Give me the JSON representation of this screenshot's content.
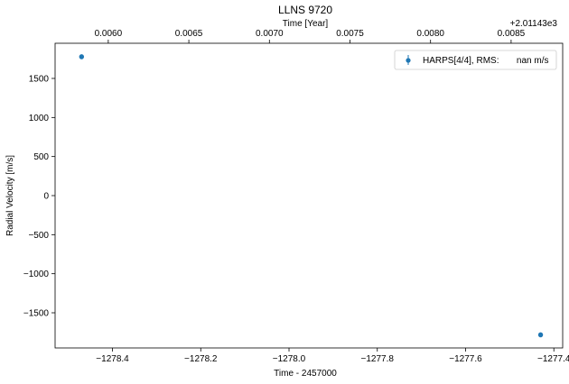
{
  "chart_data": {
    "type": "scatter",
    "title": "LLNS  9720",
    "xlabel": "Time - 2457000",
    "ylabel": "Radial Velocity [m/s]",
    "top_xlabel": "Time [Year]",
    "top_offset_label": "+2.01143e3",
    "xlim": [
      -1278.53,
      -1277.38
    ],
    "ylim": [
      -1950,
      1950
    ],
    "xticks": [
      -1278.4,
      -1278.2,
      -1278.0,
      -1277.8,
      -1277.6,
      -1277.4
    ],
    "xtick_labels": [
      "−1278.4",
      "−1278.2",
      "−1278.0",
      "−1277.8",
      "−1277.6",
      "−1277.4"
    ],
    "yticks": [
      1500,
      1000,
      500,
      0,
      -500,
      -1000,
      -1500
    ],
    "ytick_labels": [
      "1500",
      "1000",
      "500",
      "0",
      "−500",
      "−1000",
      "−1500"
    ],
    "top_xticks": [
      0.006,
      0.0065,
      0.007,
      0.0075,
      0.008,
      0.0085
    ],
    "top_xtick_labels": [
      "0.0060",
      "0.0065",
      "0.0070",
      "0.0075",
      "0.0080",
      "0.0085"
    ],
    "top_axis_map": {
      "x_ref": [
        -1278.53,
        -1277.38
      ],
      "year_ref": [
        0.00567,
        0.00882
      ]
    },
    "series": [
      {
        "name": "HARPS[4/4], RMS:       nan m/s",
        "color": "#1f77b4",
        "x": [
          -1278.47,
          -1278.47,
          -1277.43,
          -1277.43
        ],
        "y": [
          1780,
          1775,
          -1780,
          -1785
        ]
      }
    ],
    "legend_position": "top-right",
    "grid": false
  }
}
